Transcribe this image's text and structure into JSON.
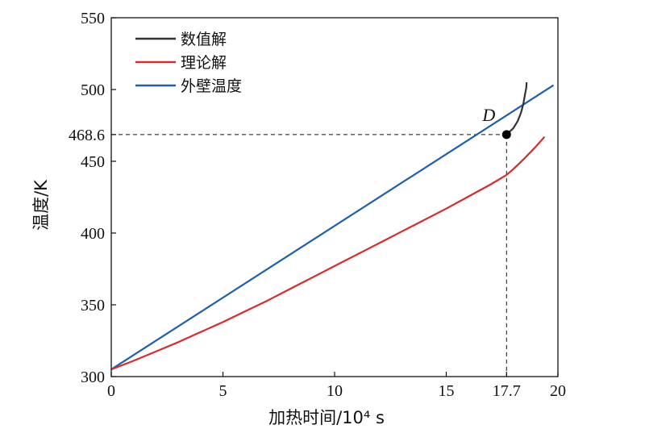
{
  "chart_data": {
    "type": "line",
    "xlabel": "加热时间/10⁴ s",
    "ylabel": "温度/K",
    "xlim": [
      0,
      20
    ],
    "ylim": [
      300,
      550
    ],
    "x_ticks": [
      0,
      5,
      10,
      15,
      17.7,
      20
    ],
    "x_tick_labels": [
      "0",
      "5",
      "10",
      "15",
      "17.7",
      "20"
    ],
    "y_ticks": [
      300,
      350,
      400,
      450,
      468.6,
      500,
      550
    ],
    "y_tick_labels": [
      "300",
      "350",
      "400",
      "450",
      "468.6",
      "500",
      "550"
    ],
    "grid": false,
    "legend_position": "top-left",
    "series": [
      {
        "name": "数值解",
        "color": "#333333",
        "points": [
          [
            17.7,
            468.6
          ],
          [
            18.0,
            473
          ],
          [
            18.2,
            478
          ],
          [
            18.35,
            484
          ],
          [
            18.45,
            490
          ],
          [
            18.52,
            496
          ],
          [
            18.58,
            501
          ],
          [
            18.6,
            505
          ]
        ]
      },
      {
        "name": "理论解",
        "color": "#d62c2c",
        "points": [
          [
            0,
            305
          ],
          [
            1,
            311
          ],
          [
            2,
            317.5
          ],
          [
            3,
            324
          ],
          [
            4,
            331
          ],
          [
            5,
            338
          ],
          [
            6,
            345.5
          ],
          [
            7,
            353
          ],
          [
            8,
            361
          ],
          [
            9,
            369
          ],
          [
            10,
            377
          ],
          [
            11,
            385
          ],
          [
            12,
            393
          ],
          [
            13,
            401
          ],
          [
            14,
            409
          ],
          [
            15,
            417
          ],
          [
            16,
            425.5
          ],
          [
            17,
            434
          ],
          [
            17.7,
            440.5
          ],
          [
            18,
            444.5
          ],
          [
            18.5,
            452
          ],
          [
            19,
            460
          ],
          [
            19.4,
            467
          ]
        ]
      },
      {
        "name": "外壁温度",
        "color": "#1f5fb0",
        "points": [
          [
            0,
            305
          ],
          [
            19.8,
            503
          ]
        ]
      }
    ],
    "annotations": [
      {
        "text": "D",
        "x": 17.7,
        "y": 468.6
      }
    ]
  }
}
